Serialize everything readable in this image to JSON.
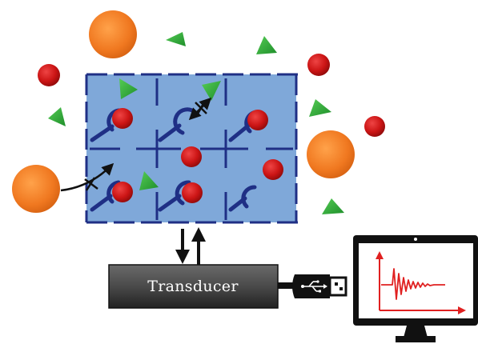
{
  "transducer": {
    "label": "Transducer"
  },
  "colors": {
    "sensing_surface_fill": "#7fa8d9",
    "sensing_surface_border": "#1f2f85",
    "receptor": "#1f2f85",
    "target_analyte": "#d11a1a",
    "large_interferent": "#f07820",
    "small_interferent": "#2eaa3a",
    "signal_trace": "#e02020",
    "monitor_frame": "#111111",
    "transducer_box": "#4a4a4a"
  },
  "icons": {
    "signal_direction": "double-vertical-arrow-icon",
    "connector": "usb-plug-icon",
    "blocked_binding": "blocked-arrow-icon",
    "display": "monitor-icon"
  }
}
